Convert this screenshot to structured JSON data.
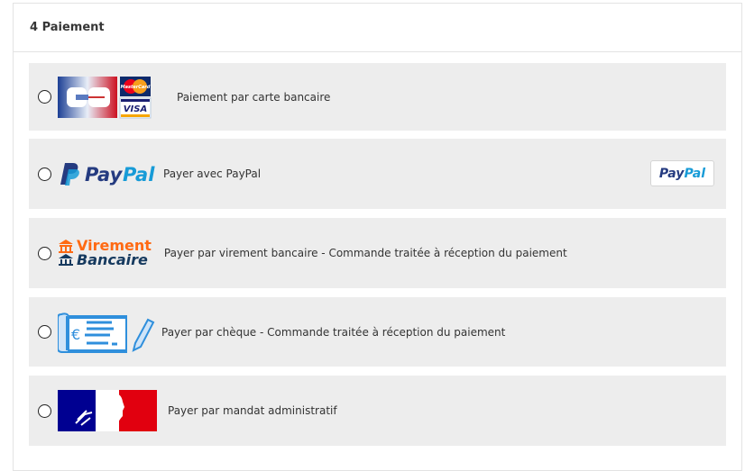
{
  "section": {
    "title": "4 Paiement"
  },
  "options": [
    {
      "label": "Paiement par carte bancaire",
      "logo": "CB / MasterCard / VISA"
    },
    {
      "label": "Payer avec PayPal",
      "logo": "PayPal",
      "button": {
        "pay": "Pay",
        "pal": "Pal"
      }
    },
    {
      "label": "Payer par virement bancaire - Commande traitée à réception du paiement",
      "logo": {
        "line1": "Virement",
        "line2": "Bancaire"
      }
    },
    {
      "label": "Payer par chèque - Commande traitée à réception du paiement",
      "logo": "cheque-icon"
    },
    {
      "label": "Payer par mandat administratif",
      "logo": "marianne-logo"
    }
  ],
  "colors": {
    "paypal_dark": "#253b80",
    "paypal_light": "#179bd7",
    "virement_orange": "#ff6a13",
    "virement_navy": "#163a5f",
    "cheque_blue": "#2f8fdc"
  }
}
